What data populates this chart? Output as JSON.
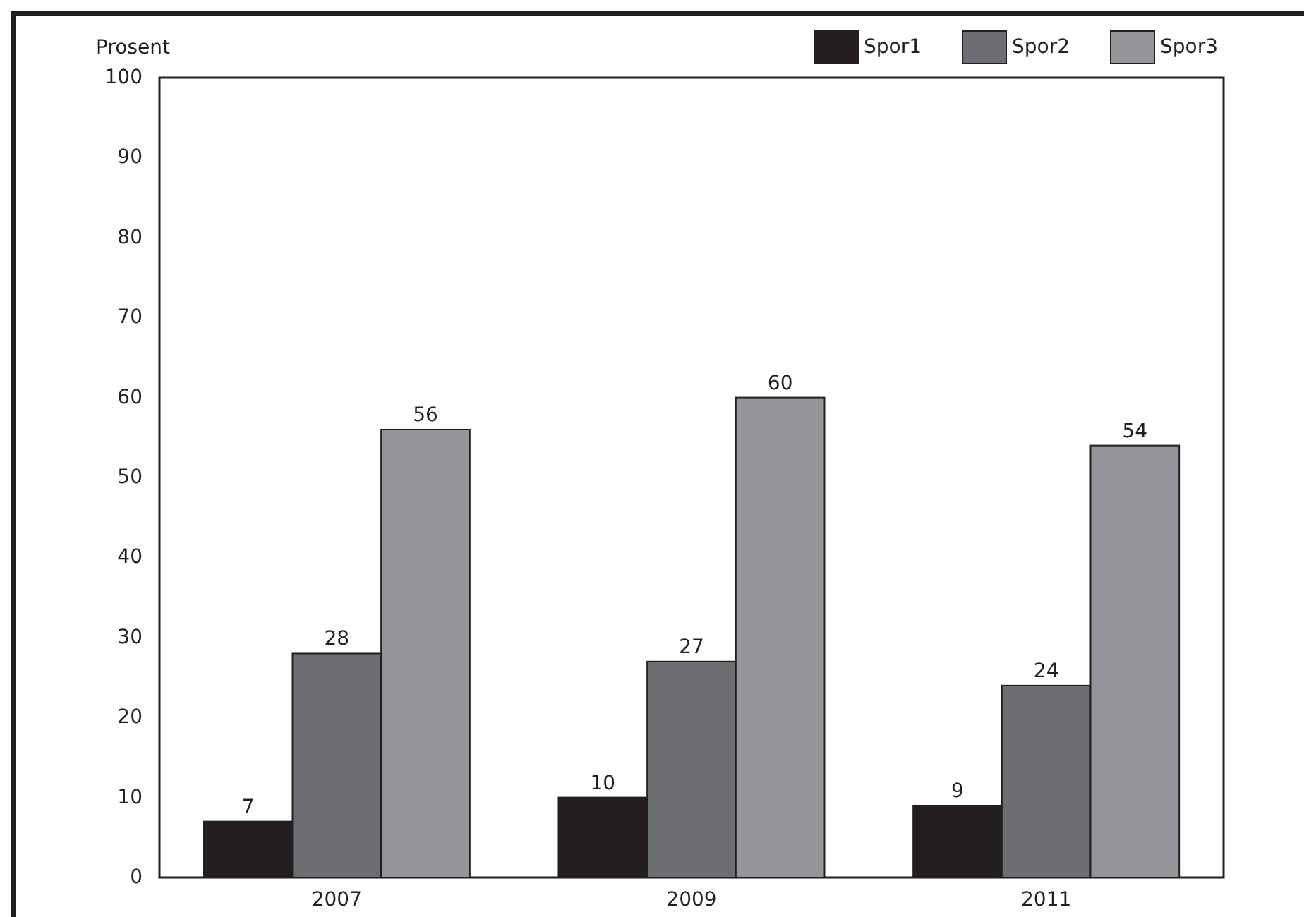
{
  "chart_data": {
    "type": "bar",
    "ylabel": "Prosent",
    "categories": [
      "2007",
      "2009",
      "2011"
    ],
    "series": [
      {
        "name": "Spor1",
        "color": "#231f20",
        "values": [
          7,
          10,
          9
        ]
      },
      {
        "name": "Spor2",
        "color": "#6d6e71",
        "values": [
          28,
          27,
          24
        ]
      },
      {
        "name": "Spor3",
        "color": "#939598",
        "values": [
          56,
          60,
          54
        ]
      }
    ],
    "ylim": [
      0,
      100
    ],
    "yticks": [
      0,
      10,
      20,
      30,
      40,
      50,
      60,
      70,
      80,
      90,
      100
    ],
    "legend": "top right",
    "data_labels": true
  }
}
